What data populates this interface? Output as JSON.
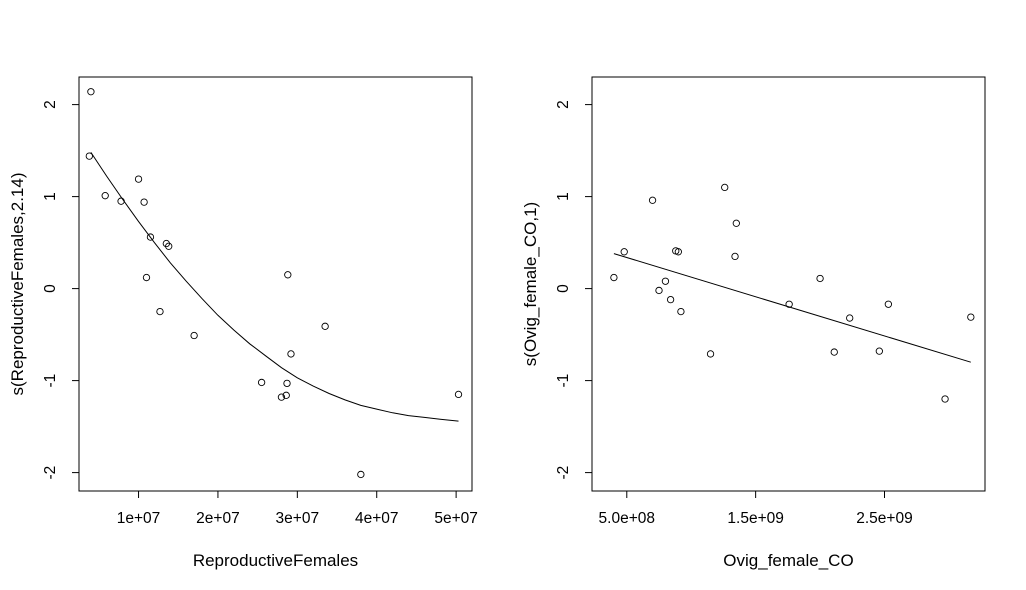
{
  "chart_data": [
    {
      "type": "scatter",
      "xlabel": "ReproductiveFemales",
      "ylabel": "s(ReproductiveFemales,2.14)",
      "xlim": [
        2500000,
        52000000
      ],
      "ylim": [
        -2.2,
        2.3
      ],
      "xticks": [
        10000000,
        20000000,
        30000000,
        40000000,
        50000000
      ],
      "xtick_labels": [
        "1e+07",
        "2e+07",
        "3e+07",
        "4e+07",
        "5e+07"
      ],
      "yticks": [
        -2,
        -1,
        0,
        1,
        2
      ],
      "ytick_labels": [
        "-2",
        "-1",
        "0",
        "1",
        "2"
      ],
      "grid": false,
      "points": [
        [
          4000000,
          2.14
        ],
        [
          3800000,
          1.44
        ],
        [
          5800000,
          1.01
        ],
        [
          7800000,
          0.95
        ],
        [
          10000000,
          1.19
        ],
        [
          10700000,
          0.94
        ],
        [
          11500000,
          0.56
        ],
        [
          13500000,
          0.49
        ],
        [
          13800000,
          0.46
        ],
        [
          11000000,
          0.12
        ],
        [
          12700000,
          -0.25
        ],
        [
          17000000,
          -0.51
        ],
        [
          25500000,
          -1.02
        ],
        [
          28000000,
          -1.18
        ],
        [
          28600000,
          -1.16
        ],
        [
          28700000,
          -1.03
        ],
        [
          28800000,
          0.15
        ],
        [
          29200000,
          -0.71
        ],
        [
          33500000,
          -0.41
        ],
        [
          38000000,
          -2.02
        ],
        [
          50300000,
          -1.15
        ]
      ],
      "smooth": [
        [
          4000000,
          1.48
        ],
        [
          6000000,
          1.22
        ],
        [
          8000000,
          0.97
        ],
        [
          10000000,
          0.73
        ],
        [
          12000000,
          0.5
        ],
        [
          14000000,
          0.28
        ],
        [
          16000000,
          0.08
        ],
        [
          18000000,
          -0.11
        ],
        [
          20000000,
          -0.29
        ],
        [
          22000000,
          -0.45
        ],
        [
          24000000,
          -0.6
        ],
        [
          26000000,
          -0.73
        ],
        [
          28000000,
          -0.86
        ],
        [
          30000000,
          -0.97
        ],
        [
          32000000,
          -1.06
        ],
        [
          34000000,
          -1.14
        ],
        [
          36000000,
          -1.21
        ],
        [
          38000000,
          -1.27
        ],
        [
          40000000,
          -1.31
        ],
        [
          42000000,
          -1.35
        ],
        [
          44000000,
          -1.38
        ],
        [
          46000000,
          -1.4
        ],
        [
          48000000,
          -1.42
        ],
        [
          50300000,
          -1.44
        ]
      ]
    },
    {
      "type": "scatter",
      "xlabel": "Ovig_female_CO",
      "ylabel": "s(Ovig_female_CO,1)",
      "xlim": [
        230000000,
        3280000000
      ],
      "ylim": [
        -2.2,
        2.3
      ],
      "xticks": [
        500000000,
        1500000000,
        2500000000
      ],
      "xtick_labels": [
        "5.0e+08",
        "1.5e+09",
        "2.5e+09"
      ],
      "yticks": [
        -2,
        -1,
        0,
        1,
        2
      ],
      "ytick_labels": [
        "-2",
        "-1",
        "0",
        "1",
        "2"
      ],
      "grid": false,
      "points": [
        [
          400000000,
          0.12
        ],
        [
          480000000,
          0.4
        ],
        [
          700000000,
          0.96
        ],
        [
          750000000,
          -0.02
        ],
        [
          800000000,
          0.08
        ],
        [
          840000000,
          -0.12
        ],
        [
          880000000,
          0.41
        ],
        [
          900000000,
          0.4
        ],
        [
          920000000,
          -0.25
        ],
        [
          1150000000,
          -0.71
        ],
        [
          1260000000,
          1.1
        ],
        [
          1350000000,
          0.71
        ],
        [
          1340000000,
          0.35
        ],
        [
          1760000000,
          -0.17
        ],
        [
          2000000000,
          0.11
        ],
        [
          2110000000,
          -0.69
        ],
        [
          2230000000,
          -0.32
        ],
        [
          2460000000,
          -0.68
        ],
        [
          2530000000,
          -0.17
        ],
        [
          2970000000,
          -1.2
        ],
        [
          3170000000,
          -0.31
        ]
      ],
      "smooth": [
        [
          400000000,
          0.38
        ],
        [
          3170000000,
          -0.8
        ]
      ]
    }
  ]
}
